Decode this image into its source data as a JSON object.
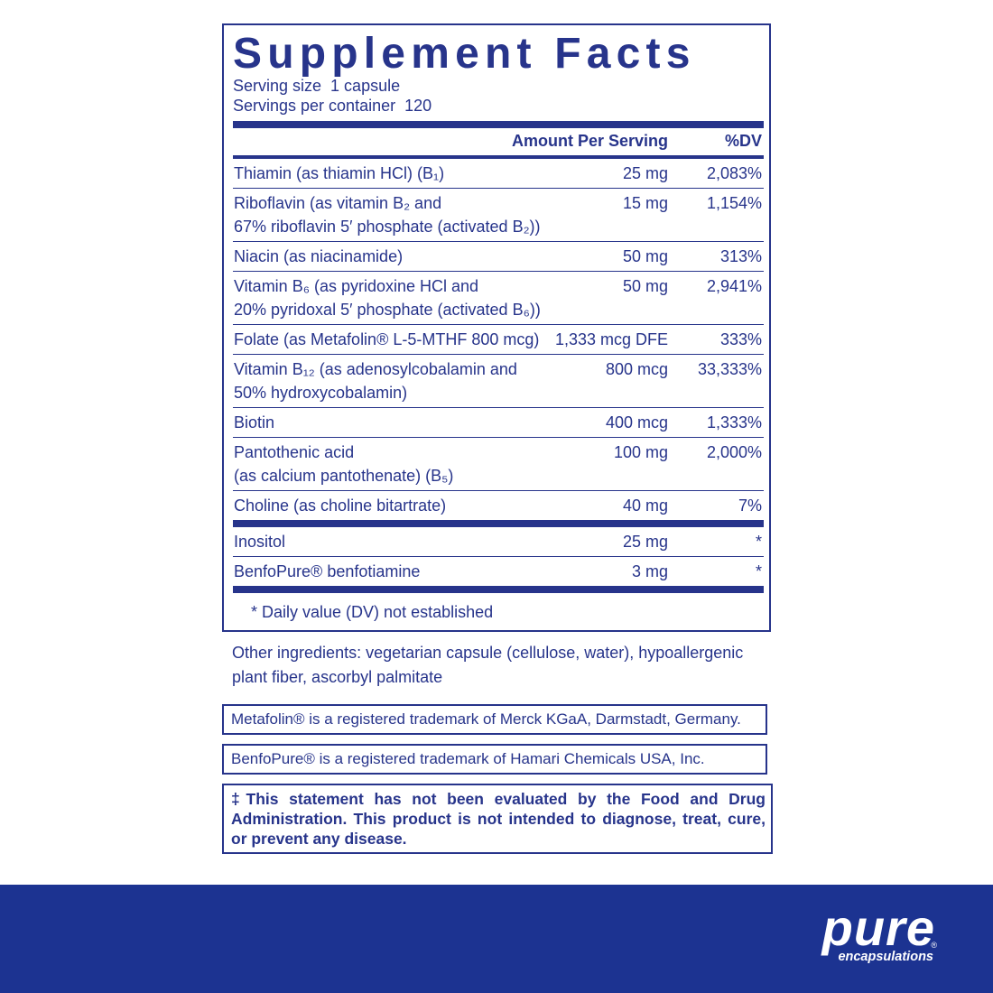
{
  "panel": {
    "title": "Supplement Facts",
    "serving_size": "Serving size  1 capsule",
    "servings_per_container": "Servings per container  120",
    "header": {
      "amount": "Amount Per Serving",
      "dv": "%DV"
    },
    "rows": [
      {
        "name": [
          "Thiamin (as thiamin HCl) (B₁)"
        ],
        "amount": "25 mg",
        "dv": "2,083%"
      },
      {
        "name": [
          "Riboflavin (as vitamin B₂ and",
          "67% riboflavin 5′ phosphate (activated B₂))"
        ],
        "amount": "15 mg",
        "dv": "1,154%"
      },
      {
        "name": [
          "Niacin (as niacinamide)"
        ],
        "amount": "50 mg",
        "dv": "313%"
      },
      {
        "name": [
          "Vitamin B₆ (as pyridoxine HCl and",
          "20% pyridoxal 5′ phosphate (activated B₆))"
        ],
        "amount": "50 mg",
        "dv": "2,941%"
      },
      {
        "name": [
          "Folate (as Metafolin® L-5-MTHF 800 mcg)"
        ],
        "amount": "1,333 mcg DFE",
        "dv": "333%"
      },
      {
        "name": [
          "Vitamin B₁₂ (as adenosylcobalamin and",
          "50% hydroxycobalamin)"
        ],
        "amount": "800 mcg",
        "dv": "33,333%"
      },
      {
        "name": [
          "Biotin"
        ],
        "amount": "400 mcg",
        "dv": "1,333%"
      },
      {
        "name": [
          "Pantothenic acid",
          "(as calcium pantothenate) (B₅)"
        ],
        "amount": "100 mg",
        "dv": "2,000%"
      },
      {
        "name": [
          "Choline (as choline bitartrate)"
        ],
        "amount": "40 mg",
        "dv": "7%"
      }
    ],
    "other_rows": [
      {
        "name": [
          "Inositol"
        ],
        "amount": "25 mg",
        "dv": "*"
      },
      {
        "name": [
          "BenfoPure® benfotiamine"
        ],
        "amount": "3 mg",
        "dv": "*"
      }
    ],
    "footnote": "* Daily value (DV) not established"
  },
  "other_ingredients": [
    "Other ingredients: vegetarian capsule (cellulose, water), hypoallergenic",
    "plant fiber, ascorbyl palmitate"
  ],
  "trademarks": [
    "Metafolin® is a registered trademark of Merck KGaA, Darmstadt, Germany.",
    "BenfoPure® is a registered trademark of Hamari Chemicals USA, Inc."
  ],
  "disclaimer": "‡This statement has not been evaluated by the Food and Drug Administration. This product is not intended to diagnose, treat, cure, or prevent any disease.",
  "logo": {
    "name": "pure",
    "mark": "®",
    "tagline": "encapsulations"
  }
}
